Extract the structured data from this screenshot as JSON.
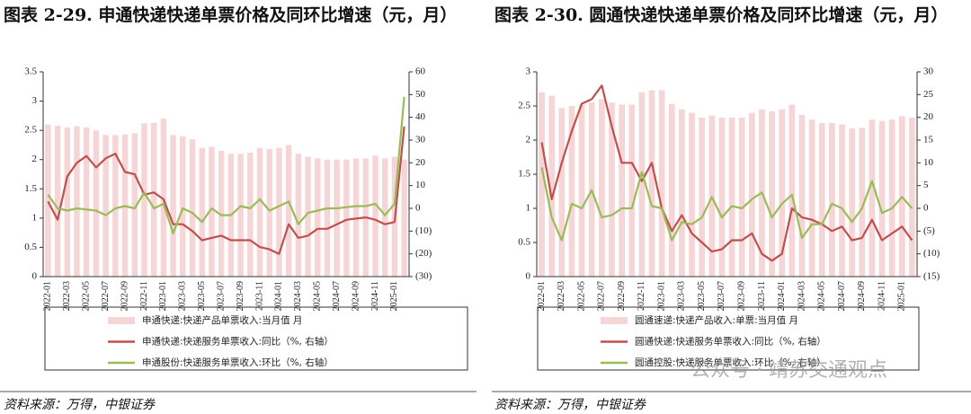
{
  "chart_data": [
    {
      "type": "combo",
      "title": "图表 2-29. 申通快递快递单票价格及同环比增速（元，月）",
      "categories": [
        "2022-01",
        null,
        "2022-03",
        null,
        "2022-05",
        null,
        "2022-07",
        null,
        "2022-09",
        null,
        "2022-11",
        null,
        "2023-01",
        null,
        "2023-03",
        null,
        "2023-05",
        null,
        "2023-07",
        null,
        "2023-09",
        null,
        "2023-11",
        null,
        "2024-01",
        null,
        "2024-03",
        null,
        "2024-05",
        null,
        "2024-07",
        null,
        "2024-09",
        null,
        "2024-11",
        null,
        "2025-01",
        null
      ],
      "series": [
        {
          "name": "申通快递:快递产品单票收入:当月值 月",
          "type": "bar",
          "color": "#f5d5d5",
          "values": [
            2.6,
            2.58,
            2.55,
            2.57,
            2.55,
            2.5,
            2.42,
            2.42,
            2.43,
            2.45,
            2.62,
            2.63,
            2.7,
            2.42,
            2.4,
            2.35,
            2.2,
            2.22,
            2.15,
            2.1,
            2.1,
            2.12,
            2.2,
            2.18,
            2.2,
            2.25,
            2.1,
            2.05,
            2.02,
            2.0,
            2.0,
            2.0,
            2.02,
            2.02,
            2.07,
            2.02,
            2.05,
            2.0
          ]
        },
        {
          "name": "申通快递:快递服务单票收入:同比（%, 右轴）",
          "type": "line",
          "axis": "y2",
          "color": "#c0504d",
          "values": [
            3,
            -5,
            14,
            20,
            23,
            18,
            22,
            24,
            16,
            15,
            6,
            7,
            4,
            -7,
            -7,
            -10,
            -14,
            -13,
            -12,
            -14,
            -14,
            -14,
            -17,
            -18,
            -20,
            -7,
            -13,
            -12,
            -9,
            -9,
            -7,
            -5,
            -4.5,
            -4,
            -5,
            -7,
            -6,
            36
          ]
        },
        {
          "name": "申通股份:快递服务单票收入:环比（%, 右轴）",
          "type": "line",
          "axis": "y2",
          "color": "#9bbb59",
          "values": [
            6,
            0,
            -1,
            0,
            -0.5,
            -1,
            -3,
            0,
            1,
            0,
            7,
            0,
            2,
            -11,
            0,
            -2,
            -6,
            0,
            -3,
            -3,
            1,
            0,
            4,
            -1,
            1,
            3,
            -7,
            -2,
            -1,
            0,
            0,
            0.5,
            1,
            1,
            2,
            -3,
            2,
            49
          ]
        }
      ],
      "ylim": [
        0,
        3.5
      ],
      "yticks": [
        0,
        0.5,
        1,
        1.5,
        2,
        2.5,
        3,
        3.5
      ],
      "y2lim": [
        -30,
        60
      ],
      "y2ticks": [
        60,
        50,
        40,
        30,
        20,
        10,
        0,
        {
          "value": -10,
          "label": "(10)"
        },
        {
          "value": -20,
          "label": "(20)"
        },
        {
          "value": -30,
          "label": "(30)"
        }
      ],
      "negative_tick_color": "#c00000",
      "source": "资料来源：万得，中银证券"
    },
    {
      "type": "combo",
      "title": "图表 2-30. 圆通快递快递单票价格及同环比增速（元，月）",
      "categories": [
        "2022-01",
        null,
        "2022-03",
        null,
        "2022-05",
        null,
        "2022-07",
        null,
        "2022-09",
        null,
        "2022-11",
        null,
        "2023-01",
        null,
        "2023-03",
        null,
        "2023-05",
        null,
        "2023-07",
        null,
        "2023-09",
        null,
        "2023-11",
        null,
        "2024-01",
        null,
        "2024-03",
        null,
        "2024-05",
        null,
        "2024-07",
        null,
        "2024-09",
        null,
        "2024-11",
        null,
        "2025-01",
        null
      ],
      "series": [
        {
          "name": "圆通速递:快递产品收入:单票:当月值 月",
          "type": "bar",
          "color": "#f5d5d5",
          "values": [
            2.7,
            2.65,
            2.47,
            2.5,
            2.52,
            2.55,
            2.6,
            2.55,
            2.52,
            2.52,
            2.7,
            2.73,
            2.73,
            2.53,
            2.45,
            2.4,
            2.33,
            2.36,
            2.33,
            2.33,
            2.33,
            2.4,
            2.45,
            2.42,
            2.45,
            2.52,
            2.37,
            2.3,
            2.25,
            2.25,
            2.23,
            2.17,
            2.18,
            2.3,
            2.28,
            2.3,
            2.35,
            2.33
          ]
        },
        {
          "name": "圆通快递:快递服务单票收入:同比（%, 右轴）",
          "type": "line",
          "axis": "y2",
          "color": "#c0504d",
          "values": [
            14.5,
            2,
            10,
            17,
            23,
            24,
            27,
            18,
            10,
            10,
            6,
            10,
            0,
            -5,
            -1.5,
            -5.5,
            -7.5,
            -9.5,
            -9,
            -7,
            -7,
            -5.5,
            -10,
            -11.5,
            -10,
            0,
            -2,
            -2.5,
            -3.5,
            -5,
            -4,
            -7,
            -6.5,
            -2.5,
            -7,
            -5.5,
            -4,
            -7
          ]
        },
        {
          "name": "圆通控股:快递服务单票收入:环比（%, 右轴）",
          "type": "line",
          "axis": "y2",
          "color": "#9bbb59",
          "values": [
            9,
            -2,
            -7,
            1,
            0,
            4,
            -2,
            -1.5,
            0,
            0,
            8,
            0.5,
            0,
            -7,
            -3,
            -3.5,
            -2,
            2.5,
            -2,
            0.5,
            0,
            2,
            3.5,
            -2,
            1,
            3,
            -6.5,
            -3.5,
            -3.5,
            1,
            0,
            -3,
            0,
            6,
            -1,
            0,
            2.5,
            0
          ]
        }
      ],
      "ylim": [
        0,
        3
      ],
      "yticks": [
        0,
        0.5,
        1,
        1.5,
        2,
        2.5,
        3
      ],
      "y2lim": [
        -15,
        30
      ],
      "y2ticks": [
        30,
        25,
        20,
        15,
        10,
        5,
        0,
        {
          "value": -5,
          "label": "(5)"
        },
        {
          "value": -10,
          "label": "(10)"
        },
        {
          "value": -15,
          "label": "(15)"
        }
      ],
      "negative_tick_color": "#c00000",
      "source": "资料来源：万得，中银证券"
    }
  ],
  "watermark": "公众号 · 靖苏交通观点"
}
